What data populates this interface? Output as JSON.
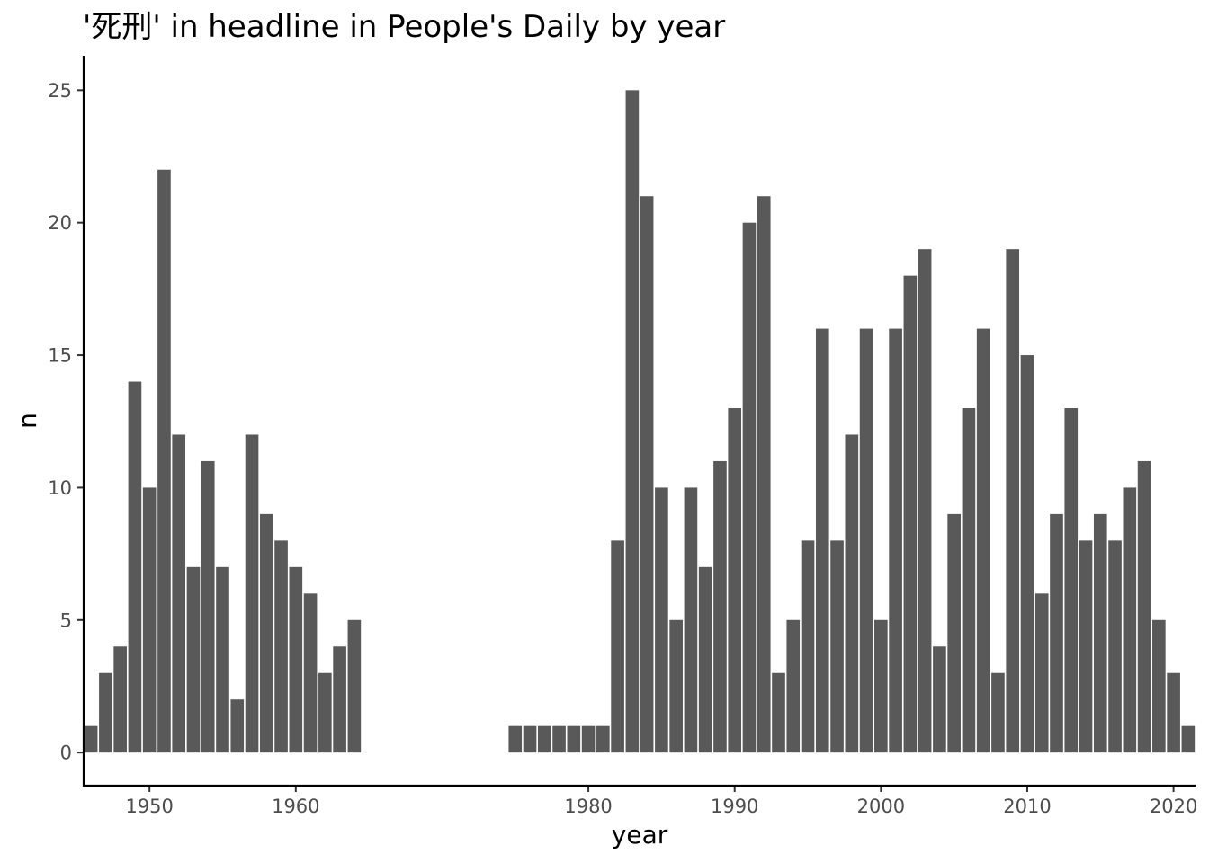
{
  "chart_data": {
    "type": "bar",
    "title": "'死刑' in headline in People's Daily by year",
    "xlabel": "year",
    "ylabel": "n",
    "xlim": [
      1945.5,
      2021.5
    ],
    "ylim": [
      -1.25,
      26.3
    ],
    "xticks": [
      1950,
      1960,
      1980,
      1990,
      2000,
      2010,
      2020
    ],
    "yticks": [
      0,
      5,
      10,
      15,
      20,
      25
    ],
    "grid": false,
    "bar_color": "#595959",
    "x": [
      1946,
      1947,
      1948,
      1949,
      1950,
      1951,
      1952,
      1953,
      1954,
      1955,
      1956,
      1957,
      1958,
      1959,
      1960,
      1961,
      1962,
      1963,
      1964,
      1965,
      1966,
      1967,
      1968,
      1969,
      1970,
      1971,
      1972,
      1973,
      1974,
      1975,
      1976,
      1977,
      1978,
      1979,
      1980,
      1981,
      1982,
      1983,
      1984,
      1985,
      1986,
      1987,
      1988,
      1989,
      1990,
      1991,
      1992,
      1993,
      1994,
      1995,
      1996,
      1997,
      1998,
      1999,
      2000,
      2001,
      2002,
      2003,
      2004,
      2005,
      2006,
      2007,
      2008,
      2009,
      2010,
      2011,
      2012,
      2013,
      2014,
      2015,
      2016,
      2017,
      2018,
      2019,
      2020,
      2021
    ],
    "values": [
      1,
      3,
      4,
      14,
      10,
      22,
      12,
      7,
      11,
      7,
      2,
      12,
      9,
      8,
      7,
      6,
      3,
      4,
      5,
      0,
      0,
      0,
      0,
      0,
      0,
      0,
      0,
      0,
      0,
      1,
      1,
      1,
      1,
      1,
      1,
      1,
      8,
      25,
      21,
      10,
      5,
      10,
      7,
      11,
      13,
      20,
      21,
      3,
      5,
      8,
      16,
      8,
      12,
      16,
      5,
      16,
      18,
      19,
      4,
      9,
      13,
      16,
      3,
      19,
      15,
      6,
      9,
      13,
      8,
      9,
      8,
      10,
      11,
      5,
      3,
      1
    ]
  }
}
